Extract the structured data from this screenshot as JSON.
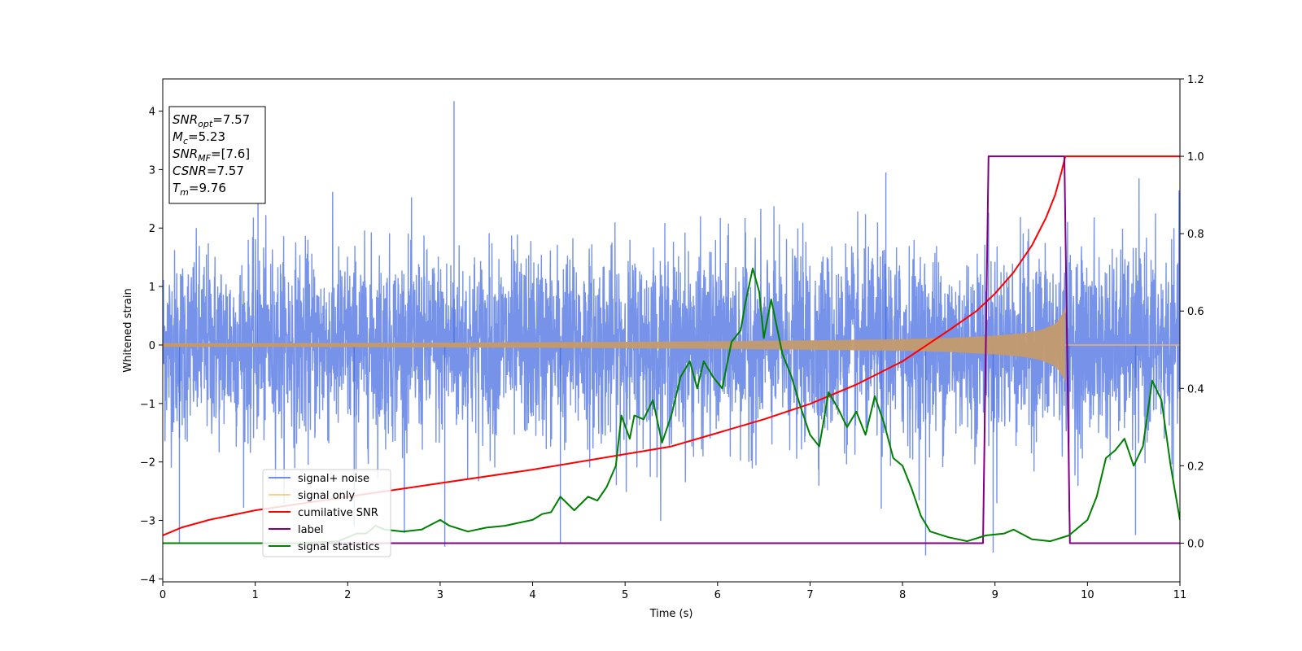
{
  "chart_data": {
    "type": "line",
    "title": "",
    "xlabel": "Time (s)",
    "ylabel": "Whitened strain",
    "xlim": [
      0,
      11
    ],
    "ylim": [
      -4.05,
      4.55
    ],
    "y2lim": [
      -0.1,
      1.2
    ],
    "x_ticks": [
      "0",
      "1",
      "2",
      "3",
      "4",
      "5",
      "6",
      "7",
      "8",
      "9",
      "10",
      "11"
    ],
    "y_ticks": [
      "−4",
      "−3",
      "−2",
      "−1",
      "0",
      "1",
      "2",
      "3",
      "4"
    ],
    "y2_ticks": [
      "0.0",
      "0.2",
      "0.4",
      "0.6",
      "0.8",
      "1.0",
      "1.2"
    ],
    "grid": false,
    "legend_position": "lower-left",
    "info_box": {
      "lines": [
        {
          "main": "SNR",
          "sub": "opt",
          "rest": "=7.57"
        },
        {
          "main": "M",
          "sub": "c",
          "rest": "=5.23"
        },
        {
          "main": "SNR",
          "sub": "MF",
          "rest": "=[7.6]"
        },
        {
          "main": "CSNR",
          "sub": "",
          "rest": "=7.57"
        },
        {
          "main": "T",
          "sub": "m",
          "rest": "=9.76"
        }
      ]
    },
    "series": [
      {
        "name": "signal+ noise",
        "color": "#4169e1",
        "axis": "left",
        "kind": "noise",
        "std": 0.8,
        "merge_time": 9.76,
        "extreme_spikes": [
          [
            0.18,
            -3.4
          ],
          [
            1.03,
            2.6
          ],
          [
            2.07,
            -3.1
          ],
          [
            3.05,
            -3.45
          ],
          [
            3.15,
            4.17
          ],
          [
            4.3,
            -3.4
          ],
          [
            7.77,
            -2.8
          ],
          [
            7.82,
            2.95
          ],
          [
            8.25,
            -3.6
          ],
          [
            8.98,
            -3.55
          ],
          [
            9.8,
            -2.85
          ],
          [
            10.52,
            -3.25
          ]
        ]
      },
      {
        "name": "signal only",
        "color": "#f5b041",
        "axis": "left",
        "kind": "chirp",
        "merge_time": 9.76,
        "amplitude_points": [
          [
            0,
            0.03
          ],
          [
            2,
            0.035
          ],
          [
            4,
            0.045
          ],
          [
            6,
            0.065
          ],
          [
            7,
            0.08
          ],
          [
            8,
            0.1
          ],
          [
            8.5,
            0.12
          ],
          [
            9,
            0.16
          ],
          [
            9.3,
            0.2
          ],
          [
            9.5,
            0.26
          ],
          [
            9.65,
            0.36
          ],
          [
            9.72,
            0.5
          ],
          [
            9.76,
            0.65
          ]
        ]
      },
      {
        "name": "cumilative SNR",
        "color": "#ff0000",
        "axis": "right",
        "points": [
          [
            0,
            0.02
          ],
          [
            0.2,
            0.04
          ],
          [
            0.5,
            0.06
          ],
          [
            1,
            0.085
          ],
          [
            2,
            0.12
          ],
          [
            3,
            0.155
          ],
          [
            4,
            0.19
          ],
          [
            5,
            0.23
          ],
          [
            5.5,
            0.25
          ],
          [
            6,
            0.285
          ],
          [
            6.5,
            0.32
          ],
          [
            7,
            0.36
          ],
          [
            7.5,
            0.41
          ],
          [
            8,
            0.47
          ],
          [
            8.5,
            0.55
          ],
          [
            8.8,
            0.6
          ],
          [
            9,
            0.645
          ],
          [
            9.2,
            0.7
          ],
          [
            9.4,
            0.77
          ],
          [
            9.55,
            0.84
          ],
          [
            9.65,
            0.9
          ],
          [
            9.72,
            0.96
          ],
          [
            9.76,
            1.0
          ],
          [
            11,
            1.0
          ]
        ]
      },
      {
        "name": "label",
        "color": "#800080",
        "axis": "right",
        "points": [
          [
            0,
            0
          ],
          [
            8.87,
            0
          ],
          [
            8.93,
            1.0
          ],
          [
            9.75,
            1.0
          ],
          [
            9.81,
            0
          ],
          [
            11,
            0
          ]
        ]
      },
      {
        "name": "signal statistics",
        "color": "#008000",
        "axis": "right",
        "points": [
          [
            0,
            0.0
          ],
          [
            1,
            0.0
          ],
          [
            1.5,
            0.0
          ],
          [
            1.9,
            0.005
          ],
          [
            2.1,
            0.025
          ],
          [
            2.2,
            0.025
          ],
          [
            2.3,
            0.045
          ],
          [
            2.4,
            0.035
          ],
          [
            2.6,
            0.03
          ],
          [
            2.8,
            0.035
          ],
          [
            3.0,
            0.06
          ],
          [
            3.1,
            0.045
          ],
          [
            3.3,
            0.03
          ],
          [
            3.5,
            0.04
          ],
          [
            3.7,
            0.045
          ],
          [
            4.0,
            0.06
          ],
          [
            4.1,
            0.075
          ],
          [
            4.2,
            0.08
          ],
          [
            4.3,
            0.12
          ],
          [
            4.45,
            0.085
          ],
          [
            4.6,
            0.12
          ],
          [
            4.7,
            0.11
          ],
          [
            4.8,
            0.145
          ],
          [
            4.9,
            0.2
          ],
          [
            4.96,
            0.33
          ],
          [
            5.05,
            0.27
          ],
          [
            5.1,
            0.33
          ],
          [
            5.2,
            0.32
          ],
          [
            5.3,
            0.37
          ],
          [
            5.4,
            0.26
          ],
          [
            5.5,
            0.33
          ],
          [
            5.6,
            0.43
          ],
          [
            5.7,
            0.47
          ],
          [
            5.78,
            0.4
          ],
          [
            5.85,
            0.47
          ],
          [
            5.95,
            0.43
          ],
          [
            6.05,
            0.4
          ],
          [
            6.15,
            0.52
          ],
          [
            6.25,
            0.55
          ],
          [
            6.3,
            0.62
          ],
          [
            6.38,
            0.71
          ],
          [
            6.45,
            0.65
          ],
          [
            6.5,
            0.53
          ],
          [
            6.58,
            0.63
          ],
          [
            6.7,
            0.49
          ],
          [
            6.8,
            0.43
          ],
          [
            6.9,
            0.35
          ],
          [
            7.0,
            0.28
          ],
          [
            7.1,
            0.25
          ],
          [
            7.2,
            0.39
          ],
          [
            7.3,
            0.35
          ],
          [
            7.4,
            0.3
          ],
          [
            7.5,
            0.34
          ],
          [
            7.6,
            0.28
          ],
          [
            7.7,
            0.38
          ],
          [
            7.8,
            0.31
          ],
          [
            7.9,
            0.22
          ],
          [
            8.0,
            0.2
          ],
          [
            8.1,
            0.14
          ],
          [
            8.2,
            0.07
          ],
          [
            8.3,
            0.03
          ],
          [
            8.5,
            0.015
          ],
          [
            8.7,
            0.005
          ],
          [
            8.9,
            0.02
          ],
          [
            9.1,
            0.025
          ],
          [
            9.2,
            0.035
          ],
          [
            9.4,
            0.01
          ],
          [
            9.6,
            0.005
          ],
          [
            9.8,
            0.02
          ],
          [
            10.0,
            0.06
          ],
          [
            10.1,
            0.12
          ],
          [
            10.2,
            0.22
          ],
          [
            10.3,
            0.24
          ],
          [
            10.4,
            0.27
          ],
          [
            10.5,
            0.2
          ],
          [
            10.6,
            0.25
          ],
          [
            10.7,
            0.42
          ],
          [
            10.8,
            0.37
          ],
          [
            10.9,
            0.2
          ],
          [
            11.0,
            0.06
          ]
        ]
      }
    ]
  }
}
